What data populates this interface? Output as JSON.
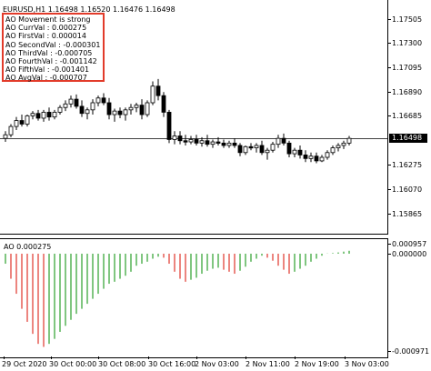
{
  "main": {
    "symbol_line": "EURUSD,H1  1.16498 1.16520 1.16476 1.16498",
    "current_price": "1.16498",
    "price_axis": [
      "1.17505",
      "1.17300",
      "1.17095",
      "1.16890",
      "1.16685",
      "1.16275",
      "1.16070",
      "1.15865"
    ]
  },
  "info_box": {
    "lines": [
      "AO Movement is strong",
      "AO CurrVal : 0.000275",
      "AO FirstVal : 0.000014",
      "AO SecondVal : -0.000301",
      "AO ThirdVal : -0.000705",
      "AO FourthVal : -0.001142",
      "AO FifthVal : -0.001401",
      "AO AvgVal : -0.000707"
    ]
  },
  "ao": {
    "label": "AO 0.000275",
    "axis": [
      "0.000957",
      "0.000000",
      "-0.000971"
    ],
    "up_color": "#2ca02c",
    "down_color": "#e0342a"
  },
  "time_axis": [
    "29 Oct 2020",
    "30 Oct 16:00",
    "2 Nov 03:00",
    "2 Nov 11:00",
    "2 Nov 19:00",
    "3 Nov 03:00"
  ],
  "time_axis_extra": [
    "30 Oct 08:00",
    "30 Oct 00:00"
  ],
  "time_labels_all": [
    "29 Oct 2020",
    "30 Oct 00:00",
    "30 Oct 08:00",
    "30 Oct 16:00",
    "2 Nov 03:00",
    "2 Nov 11:00",
    "2 Nov 19:00",
    "3 Nov 03:00"
  ],
  "candles": [
    [
      1.165,
      1.1656,
      1.1647,
      1.1653
    ],
    [
      1.1653,
      1.1662,
      1.1651,
      1.166
    ],
    [
      1.166,
      1.1668,
      1.1657,
      1.1665
    ],
    [
      1.1665,
      1.167,
      1.166,
      1.1662
    ],
    [
      1.1662,
      1.167,
      1.166,
      1.1669
    ],
    [
      1.1669,
      1.1673,
      1.1666,
      1.1671
    ],
    [
      1.1671,
      1.1674,
      1.1665,
      1.1667
    ],
    [
      1.1667,
      1.1674,
      1.1664,
      1.1672
    ],
    [
      1.1672,
      1.1676,
      1.1665,
      1.1668
    ],
    [
      1.1668,
      1.1674,
      1.1666,
      1.1672
    ],
    [
      1.1672,
      1.1678,
      1.167,
      1.1676
    ],
    [
      1.1676,
      1.1682,
      1.1673,
      1.1679
    ],
    [
      1.1679,
      1.1686,
      1.1676,
      1.1683
    ],
    [
      1.1683,
      1.1687,
      1.1675,
      1.1677
    ],
    [
      1.1677,
      1.1682,
      1.1668,
      1.1671
    ],
    [
      1.1671,
      1.1676,
      1.1666,
      1.1674
    ],
    [
      1.1674,
      1.1683,
      1.167,
      1.168
    ],
    [
      1.168,
      1.1686,
      1.1677,
      1.1684
    ],
    [
      1.1684,
      1.1688,
      1.1678,
      1.168
    ],
    [
      1.168,
      1.1684,
      1.1666,
      1.167
    ],
    [
      1.167,
      1.1675,
      1.1664,
      1.1673
    ],
    [
      1.1673,
      1.1676,
      1.1667,
      1.167
    ],
    [
      1.167,
      1.1676,
      1.1665,
      1.1674
    ],
    [
      1.1674,
      1.1679,
      1.167,
      1.1676
    ],
    [
      1.1676,
      1.168,
      1.1672,
      1.1678
    ],
    [
      1.1678,
      1.1683,
      1.1666,
      1.167
    ],
    [
      1.167,
      1.1682,
      1.1668,
      1.168
    ],
    [
      1.168,
      1.1698,
      1.1678,
      1.1694
    ],
    [
      1.1694,
      1.17,
      1.1682,
      1.1686
    ],
    [
      1.1686,
      1.1689,
      1.1668,
      1.1672
    ],
    [
      1.1672,
      1.1674,
      1.1646,
      1.1649
    ],
    [
      1.1649,
      1.1656,
      1.1645,
      1.1652
    ],
    [
      1.1652,
      1.1656,
      1.1645,
      1.1648
    ],
    [
      1.1648,
      1.1653,
      1.1644,
      1.1647
    ],
    [
      1.1647,
      1.1652,
      1.1645,
      1.1649
    ],
    [
      1.1649,
      1.1653,
      1.1644,
      1.1646
    ],
    [
      1.1646,
      1.1651,
      1.1643,
      1.1648
    ],
    [
      1.1648,
      1.1653,
      1.1643,
      1.1645
    ],
    [
      1.1645,
      1.1649,
      1.1642,
      1.1647
    ],
    [
      1.1647,
      1.1651,
      1.1644,
      1.1646
    ],
    [
      1.1646,
      1.1649,
      1.1642,
      1.1644
    ],
    [
      1.1644,
      1.1648,
      1.1642,
      1.1646
    ],
    [
      1.1646,
      1.165,
      1.1642,
      1.1644
    ],
    [
      1.1644,
      1.1646,
      1.1635,
      1.1638
    ],
    [
      1.1638,
      1.1644,
      1.1636,
      1.1643
    ],
    [
      1.1643,
      1.1646,
      1.164,
      1.1642
    ],
    [
      1.1642,
      1.1646,
      1.1638,
      1.1644
    ],
    [
      1.1644,
      1.1648,
      1.1636,
      1.1638
    ],
    [
      1.1638,
      1.1642,
      1.1632,
      1.164
    ],
    [
      1.164,
      1.1647,
      1.1638,
      1.1645
    ],
    [
      1.1645,
      1.1653,
      1.1642,
      1.165
    ],
    [
      1.165,
      1.1654,
      1.1644,
      1.1646
    ],
    [
      1.1646,
      1.1648,
      1.1634,
      1.1637
    ],
    [
      1.1637,
      1.1642,
      1.1634,
      1.164
    ],
    [
      1.164,
      1.1644,
      1.1633,
      1.1636
    ],
    [
      1.1636,
      1.164,
      1.163,
      1.1633
    ],
    [
      1.1633,
      1.1638,
      1.163,
      1.1635
    ],
    [
      1.1635,
      1.1638,
      1.1629,
      1.1631
    ],
    [
      1.1631,
      1.1636,
      1.163,
      1.1634
    ],
    [
      1.1634,
      1.164,
      1.1632,
      1.1638
    ],
    [
      1.1638,
      1.1644,
      1.1636,
      1.1642
    ],
    [
      1.1642,
      1.1646,
      1.1639,
      1.1644
    ],
    [
      1.1644,
      1.1648,
      1.1641,
      1.1646
    ],
    [
      1.1646,
      1.1652,
      1.1644,
      1.165
    ]
  ],
  "ao_values": [
    -0.0001,
    -0.00025,
    -0.0004,
    -0.00055,
    -0.00068,
    -0.0008,
    -0.0009,
    -0.00093,
    -0.0009,
    -0.00085,
    -0.00078,
    -0.00072,
    -0.00066,
    -0.0006,
    -0.00055,
    -0.0005,
    -0.00045,
    -0.0004,
    -0.00035,
    -0.0003,
    -0.00028,
    -0.00025,
    -0.00022,
    -0.00018,
    -0.00012,
    -0.0001,
    -8e-05,
    -5e-05,
    -3e-05,
    -4e-05,
    -0.0001,
    -0.00018,
    -0.00025,
    -0.00028,
    -0.00026,
    -0.00024,
    -0.0002,
    -0.00017,
    -0.00015,
    -0.00014,
    -0.00016,
    -0.00018,
    -0.0002,
    -0.00017,
    -0.00013,
    -8e-05,
    -5e-05,
    -2e-05,
    -4e-05,
    -7e-05,
    -0.00012,
    -0.00016,
    -0.0002,
    -0.00018,
    -0.00015,
    -0.00012,
    -8e-05,
    -5e-05,
    -2e-05,
    2e-05,
    6e-05,
    0.00012,
    0.0002,
    0.00028
  ]
}
